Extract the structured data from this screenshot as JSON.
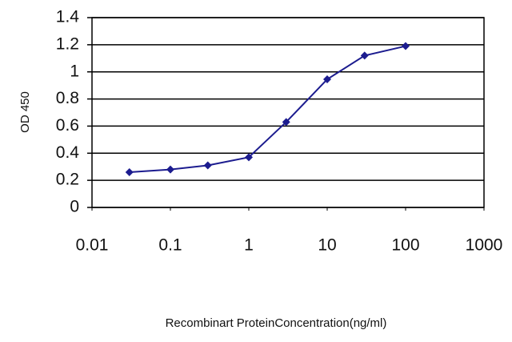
{
  "chart_data": {
    "type": "line",
    "x_label": "Recombinart ProteinConcentration(ng/ml)",
    "y_label": "OD 450",
    "x": [
      0.03,
      0.1,
      0.3,
      1,
      3,
      10,
      30,
      100
    ],
    "series": [
      {
        "name": "OD",
        "color": "#1c1c8f",
        "values": [
          0.26,
          0.28,
          0.31,
          0.37,
          0.63,
          0.945,
          1.12,
          1.19
        ]
      }
    ],
    "xscale": "log",
    "xlim": [
      0.01,
      1000
    ],
    "xticks": [
      0.01,
      0.1,
      1,
      10,
      100,
      1000
    ],
    "ylim": [
      0,
      1.4
    ],
    "yticks": [
      0,
      0.2,
      0.4,
      0.6,
      0.8,
      1,
      1.2,
      1.4
    ],
    "grid": true
  }
}
